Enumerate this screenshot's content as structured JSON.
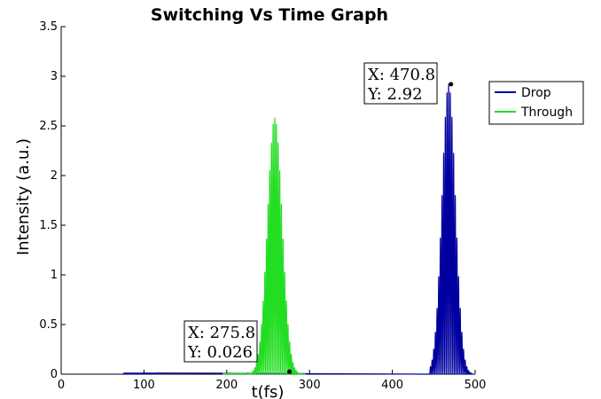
{
  "chart_data": {
    "type": "line",
    "title": "Switching Vs Time Graph",
    "xlabel": "t(fs)",
    "ylabel": "Intensity (a.u.)",
    "xlim": [
      0,
      500
    ],
    "ylim": [
      0,
      3.5
    ],
    "xticks": [
      "0",
      "100",
      "200",
      "300",
      "400",
      "500"
    ],
    "yticks": [
      "0",
      "0.5",
      "1",
      "1.5",
      "2",
      "2.5",
      "3",
      "3.5"
    ],
    "grid": false,
    "legend_position": "top-right",
    "series": [
      {
        "name": "Drop",
        "color": "#0000a0",
        "envelope": {
          "center": 468,
          "width": 11.5,
          "peak": 2.92,
          "start": 445,
          "end": 497,
          "period": 2.0
        },
        "baseline_noise": {
          "start": 75,
          "end": 115,
          "amplitude": 0.012
        }
      },
      {
        "name": "Through",
        "color": "#22dd22",
        "envelope": {
          "center": 258,
          "width": 12.5,
          "peak": 2.58,
          "start": 225,
          "end": 295,
          "period": 2.0
        },
        "baseline_noise": {
          "start": 195,
          "end": 222,
          "amplitude": 0.008
        }
      }
    ],
    "annotations": [
      {
        "x_label": "X: 470.8",
        "y_label": "Y: 2.92",
        "x": 470.8,
        "y": 2.92
      },
      {
        "x_label": "X: 275.8",
        "y_label": "Y: 0.026",
        "x": 275.8,
        "y": 0.026
      }
    ]
  }
}
